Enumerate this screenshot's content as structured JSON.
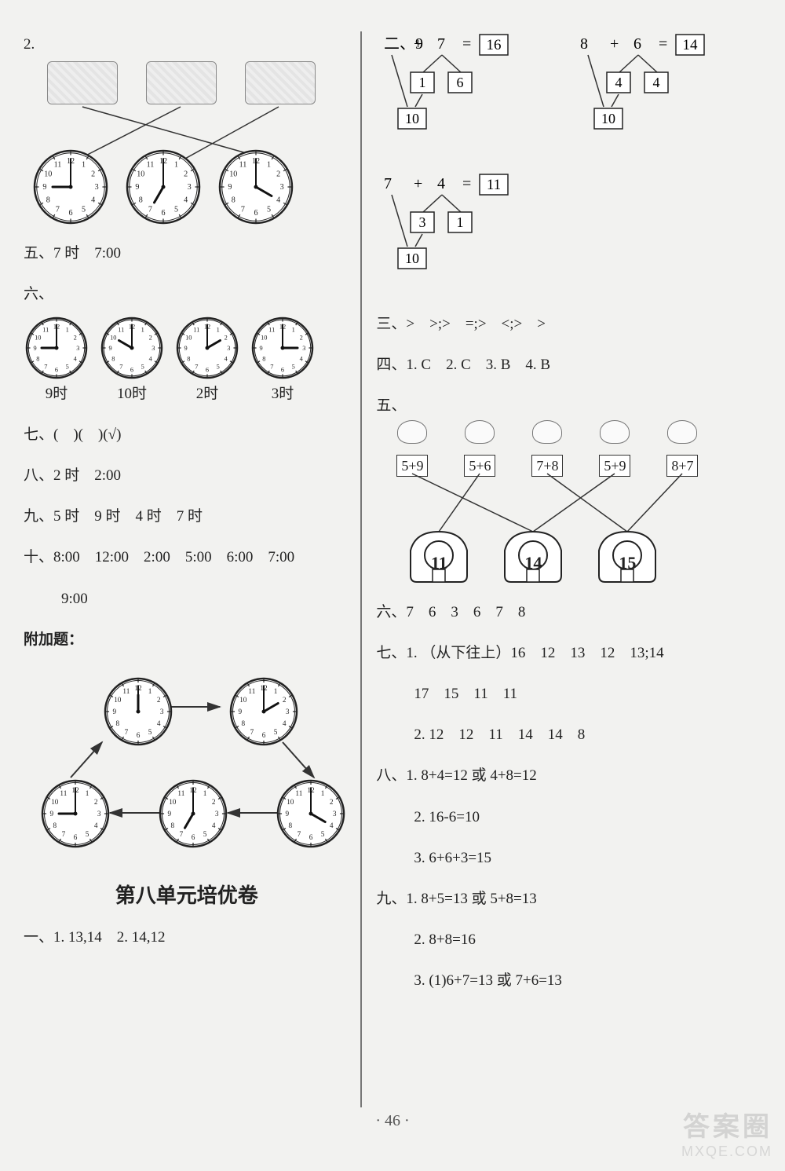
{
  "left": {
    "q2_label": "2.",
    "q2_clocks": [
      {
        "h": 9,
        "m": 0
      },
      {
        "h": 7,
        "m": 0
      },
      {
        "h": 4,
        "m": 0
      }
    ],
    "q2_match_pairs": [
      [
        0,
        2
      ],
      [
        1,
        0
      ],
      [
        2,
        1
      ]
    ],
    "q5": "五、7 时　7:00",
    "q6_label": "六、",
    "q6_clocks": [
      {
        "h": 9,
        "m": 0,
        "label": "9时"
      },
      {
        "h": 10,
        "m": 0,
        "label": "10时"
      },
      {
        "h": 2,
        "m": 0,
        "label": "2时"
      },
      {
        "h": 3,
        "m": 0,
        "label": "3时"
      }
    ],
    "q7": "七、(　)(　)(√)",
    "q8": "八、2 时　2:00",
    "q9": "九、5 时　9 时　4 时　7 时",
    "q10": "十、8:00　12:00　2:00　5:00　6:00　7:00",
    "q10b": "9:00",
    "bonus_label": "附加题：",
    "bonus_clocks": [
      {
        "h": 12,
        "m": 0
      },
      {
        "h": 2,
        "m": 0
      },
      {
        "h": 9,
        "m": 0
      },
      {
        "h": 7,
        "m": 0
      },
      {
        "h": 4,
        "m": 0
      }
    ],
    "title8": "第八单元培优卷",
    "q1_8": "一、1. 13,14　2. 14,12"
  },
  "right": {
    "q2_label": "二、",
    "trees": [
      {
        "a": 9,
        "op": "+",
        "b": 7,
        "eq": "=",
        "r": 16,
        "s1": 1,
        "s2": 6,
        "sum": 10
      },
      {
        "a": 8,
        "op": "+",
        "b": 6,
        "eq": "=",
        "r": 14,
        "s1": 4,
        "s2": 4,
        "sum": 10
      },
      {
        "a": 7,
        "op": "+",
        "b": 4,
        "eq": "=",
        "r": 11,
        "s1": 3,
        "s2": 1,
        "sum": 10
      }
    ],
    "q3": "三、>　>;>　=;>　<;>　>",
    "q4": "四、1. C　2. C　3. B　4. B",
    "q5_label": "五、",
    "q5_items": [
      {
        "expr": "5+9"
      },
      {
        "expr": "5+6"
      },
      {
        "expr": "7+8"
      },
      {
        "expr": "5+9"
      },
      {
        "expr": "8+7"
      }
    ],
    "q5_houses": [
      {
        "n": "11"
      },
      {
        "n": "14"
      },
      {
        "n": "15"
      }
    ],
    "q5_match": [
      [
        0,
        1
      ],
      [
        1,
        0
      ],
      [
        2,
        2
      ],
      [
        3,
        1
      ],
      [
        4,
        2
      ]
    ],
    "q6": "六、7　6　3　6　7　8",
    "q7a": "七、1. （从下往上）16　12　13　12　13;14",
    "q7b": "17　15　11　11",
    "q7c": "2. 12　12　11　14　14　8",
    "q8a": "八、1. 8+4=12 或 4+8=12",
    "q8b": "2. 16-6=10",
    "q8c": "3. 6+6+3=15",
    "q9a": "九、1. 8+5=13 或 5+8=13",
    "q9b": "2. 8+8=16",
    "q9c": "3. (1)6+7=13 或 7+6=13"
  },
  "page_num": "· 46 ·",
  "watermark1": "答案圈",
  "watermark2": "MXQE.COM",
  "style": {
    "clock_face": "#ffffff",
    "clock_border": "#222222",
    "line_color": "#333333",
    "box_border": "#222222"
  }
}
